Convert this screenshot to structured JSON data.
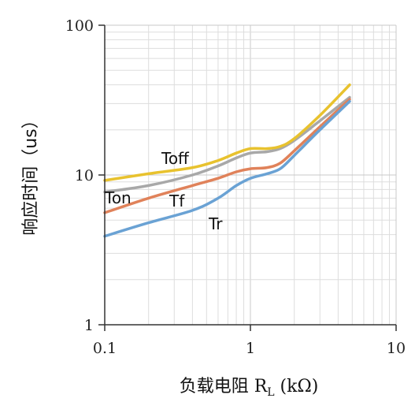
{
  "chart_data": {
    "type": "line",
    "x_scale": "log",
    "y_scale": "log",
    "xlim": [
      0.1,
      10
    ],
    "ylim": [
      1,
      100
    ],
    "x_ticks": [
      "0.1",
      "1",
      "10"
    ],
    "y_ticks": [
      "1",
      "10",
      "100"
    ],
    "xlabel": "负载电阻 R",
    "xlabel_sub": "L",
    "xlabel_unit": " (kΩ)",
    "ylabel": "响应时间（us）",
    "grid": true,
    "series": [
      {
        "name": "Toff",
        "color": "#e8c22e",
        "points": [
          [
            0.1,
            9.2
          ],
          [
            0.2,
            10.2
          ],
          [
            0.4,
            11.2
          ],
          [
            0.6,
            12.5
          ],
          [
            0.8,
            14.0
          ],
          [
            1.0,
            15.0
          ],
          [
            1.3,
            15.0
          ],
          [
            1.6,
            15.5
          ],
          [
            2.0,
            17.5
          ],
          [
            3.0,
            25.0
          ],
          [
            4.8,
            40.0
          ]
        ]
      },
      {
        "name": "Ton",
        "color": "#a8a8a8",
        "points": [
          [
            0.1,
            7.7
          ],
          [
            0.2,
            8.5
          ],
          [
            0.4,
            10.0
          ],
          [
            0.6,
            11.5
          ],
          [
            0.8,
            13.0
          ],
          [
            1.0,
            14.0
          ],
          [
            1.3,
            14.3
          ],
          [
            1.6,
            15.0
          ],
          [
            2.0,
            17.0
          ],
          [
            3.0,
            23.0
          ],
          [
            4.8,
            33.0
          ]
        ]
      },
      {
        "name": "Tf",
        "color": "#e0825a",
        "points": [
          [
            0.1,
            5.6
          ],
          [
            0.2,
            7.0
          ],
          [
            0.4,
            8.5
          ],
          [
            0.6,
            9.5
          ],
          [
            0.8,
            10.5
          ],
          [
            1.0,
            11.0
          ],
          [
            1.3,
            11.2
          ],
          [
            1.6,
            12.0
          ],
          [
            2.0,
            14.5
          ],
          [
            3.0,
            21.0
          ],
          [
            4.8,
            32.0
          ]
        ]
      },
      {
        "name": "Tr",
        "color": "#6aa2d4",
        "points": [
          [
            0.1,
            3.9
          ],
          [
            0.2,
            4.8
          ],
          [
            0.4,
            5.8
          ],
          [
            0.6,
            7.0
          ],
          [
            0.8,
            8.5
          ],
          [
            1.0,
            9.5
          ],
          [
            1.3,
            10.2
          ],
          [
            1.6,
            11.0
          ],
          [
            2.0,
            13.5
          ],
          [
            3.0,
            20.0
          ],
          [
            4.8,
            31.0
          ]
        ]
      }
    ]
  }
}
